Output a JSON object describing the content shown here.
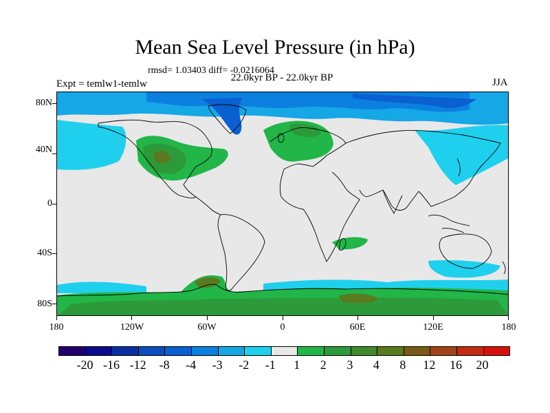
{
  "title": "Mean Sea Level Pressure (in hPa)",
  "stats": "rmsd= 1.03403 diff= -0.0216064",
  "subtitle": "22.0kyr BP - 22.0kyr BP",
  "experiment": "Expt = temlw1-temlw",
  "season": "JJA",
  "y_axis_labels": [
    "80N",
    "40N",
    "0",
    "40S",
    "80S"
  ],
  "x_axis_labels": [
    "180",
    "120W",
    "60W",
    "0",
    "60E",
    "120E",
    "180"
  ],
  "colorbar": {
    "colors": [
      "#22006e",
      "#0b0b8c",
      "#0a2fa3",
      "#0c4dbf",
      "#0a5fd1",
      "#0b80e0",
      "#16a7e6",
      "#1fd0ee",
      "#e8e8e8",
      "#22b548",
      "#2c9a3a",
      "#3f8a2a",
      "#5a7a20",
      "#7a5a18",
      "#a14318",
      "#c22a12",
      "#d60f0a"
    ],
    "labels": [
      "-20",
      "-16",
      "-12",
      "-8",
      "-4",
      "-3",
      "-2",
      "-1",
      "1",
      "2",
      "3",
      "4",
      "8",
      "12",
      "16",
      "20"
    ]
  },
  "legend_colors": {
    "neutral": "#e8e8e8",
    "pos1": "#22b548",
    "pos2": "#2c9a3a",
    "pos4": "#5a7a20",
    "pos8": "#7a5a18",
    "neg1": "#1fd0ee",
    "neg2": "#16a7e6",
    "neg3": "#0b80e0",
    "neg4": "#0a5fd1",
    "neg8": "#0c4dbf"
  }
}
